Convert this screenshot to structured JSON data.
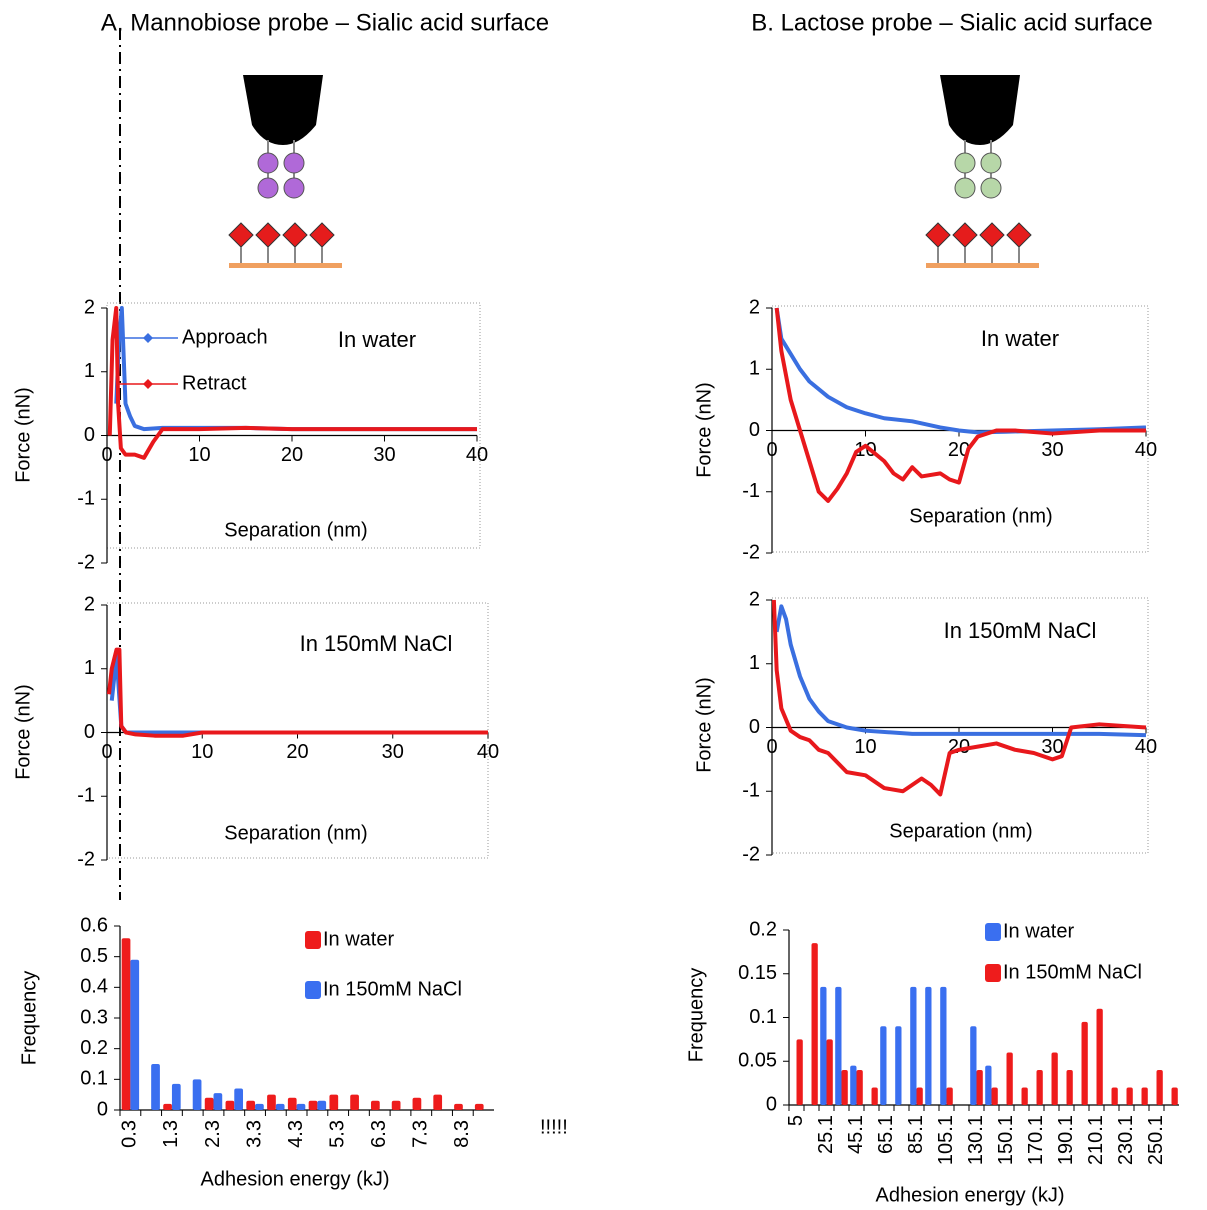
{
  "panel_titles": [
    "A. Mannobiose probe – Sialic acid surface",
    "B. Lactose probe – Sialic acid surface"
  ],
  "annotation": "!!!!!",
  "chart_data": [
    {
      "type": "line",
      "title": "In water",
      "x_label": "Separation (nm)",
      "y_label": "Force (nN)",
      "xlim": [
        0,
        40
      ],
      "ylim": [
        -2,
        2
      ],
      "xticks": [
        0,
        10,
        20,
        30,
        40
      ],
      "yticks": [
        -2,
        -1,
        0,
        1,
        2
      ],
      "series": [
        {
          "name": "Approach",
          "color": "#3a6fe0",
          "x": [
            1.0,
            1.3,
            1.6,
            2.0,
            2.5,
            3,
            4,
            6,
            10,
            15,
            20,
            25,
            30,
            35,
            40
          ],
          "values": [
            0.5,
            1.5,
            2.0,
            0.5,
            0.3,
            0.15,
            0.1,
            0.12,
            0.12,
            0.12,
            0.1,
            0.1,
            0.1,
            0.1,
            0.1
          ]
        },
        {
          "name": "Retract",
          "color": "#e8181c",
          "x": [
            0.3,
            0.6,
            1.0,
            1.2,
            1.5,
            2,
            3,
            4,
            5,
            6,
            10,
            15,
            20,
            25,
            30,
            35,
            40
          ],
          "values": [
            0,
            1.5,
            2.0,
            0.5,
            -0.2,
            -0.3,
            -0.3,
            -0.35,
            -0.1,
            0.1,
            0.1,
            0.12,
            0.1,
            0.1,
            0.1,
            0.1,
            0.1
          ]
        }
      ]
    },
    {
      "type": "line",
      "title": "In 150mM NaCl",
      "x_label": "Separation (nm)",
      "y_label": "Force (nN)",
      "xlim": [
        0,
        40
      ],
      "ylim": [
        -2,
        2
      ],
      "xticks": [
        0,
        10,
        20,
        30,
        40
      ],
      "yticks": [
        -2,
        -1,
        0,
        1,
        2
      ],
      "series": [
        {
          "color": "#3a6fe0",
          "x": [
            0.5,
            1,
            1.5,
            2,
            5,
            10,
            20,
            30,
            40
          ],
          "values": [
            0.5,
            1.2,
            0.1,
            0,
            0,
            0,
            0,
            0,
            0
          ]
        },
        {
          "color": "#e8181c",
          "x": [
            0.2,
            0.5,
            1,
            1.3,
            1.5,
            2,
            3,
            5,
            8,
            10,
            15,
            20,
            25,
            30,
            35,
            40
          ],
          "values": [
            0.6,
            1,
            1.3,
            1.3,
            0.1,
            0,
            -0.03,
            -0.05,
            -0.05,
            0,
            0,
            0,
            0,
            0,
            0,
            0
          ]
        }
      ]
    },
    {
      "type": "bar",
      "x_label": "Adhesion energy  (kJ)",
      "y_label": "Frequency",
      "ylim": [
        0,
        0.6
      ],
      "yticks": [
        0,
        0.1,
        0.2,
        0.3,
        0.4,
        0.5,
        0.6
      ],
      "categories": [
        "0.3",
        null,
        "1.3",
        null,
        "2.3",
        null,
        "3.3",
        null,
        "4.3",
        null,
        "5.3",
        null,
        "6.3",
        null,
        "7.3",
        null,
        "8.3",
        null
      ],
      "series": [
        {
          "name": "In water",
          "color": "#ee1c1c",
          "values": [
            0.56,
            0,
            0.02,
            0,
            0.04,
            0.03,
            0.03,
            0.05,
            0.04,
            0.03,
            0.05,
            0.05,
            0.03,
            0.03,
            0.04,
            0.05,
            0.02,
            0.02
          ]
        },
        {
          "name": "In 150mM NaCl",
          "color": "#3a6ff0",
          "values": [
            0.49,
            0.15,
            0.085,
            0.1,
            0.055,
            0.07,
            0.02,
            0.02,
            0.02,
            0.03,
            0,
            0,
            0,
            0,
            0,
            0,
            0,
            0
          ]
        }
      ]
    },
    {
      "type": "line",
      "title": "In water",
      "x_label": "Separation (nm)",
      "y_label": "Force (nN)",
      "xlim": [
        0,
        40
      ],
      "ylim": [
        -2,
        2
      ],
      "xticks": [
        0,
        10,
        20,
        30,
        40
      ],
      "yticks": [
        -2,
        -1,
        0,
        1,
        2
      ],
      "series": [
        {
          "color": "#3a6fe0",
          "x": [
            0.5,
            1,
            2,
            3,
            4,
            6,
            8,
            10,
            12,
            15,
            18,
            20,
            22,
            25,
            30,
            35,
            40
          ],
          "values": [
            2,
            1.5,
            1.25,
            1.0,
            0.8,
            0.55,
            0.38,
            0.28,
            0.2,
            0.15,
            0.05,
            0,
            -0.03,
            -0.02,
            0,
            0.02,
            0.05
          ]
        },
        {
          "color": "#e8181c",
          "x": [
            0.5,
            1,
            2,
            3,
            4,
            5,
            6,
            7,
            8,
            9,
            10,
            12,
            13,
            14,
            15,
            16,
            18,
            19,
            20,
            21,
            22,
            24,
            26,
            30,
            35,
            40
          ],
          "values": [
            2,
            1.3,
            0.5,
            0,
            -0.5,
            -1.0,
            -1.15,
            -0.95,
            -0.7,
            -0.35,
            -0.25,
            -0.5,
            -0.7,
            -0.8,
            -0.6,
            -0.75,
            -0.7,
            -0.8,
            -0.85,
            -0.3,
            -0.1,
            0,
            0,
            -0.05,
            0,
            0
          ]
        }
      ]
    },
    {
      "type": "line",
      "title": "In 150mM NaCl",
      "x_label": "Separation (nm)",
      "y_label": "Force (nN)",
      "xlim": [
        0,
        40
      ],
      "ylim": [
        -2,
        2
      ],
      "xticks": [
        0,
        10,
        20,
        30,
        40
      ],
      "yticks": [
        -2,
        -1,
        0,
        1,
        2
      ],
      "series": [
        {
          "color": "#3a6fe0",
          "x": [
            0.5,
            1,
            1.5,
            2,
            3,
            4,
            5,
            6,
            8,
            10,
            15,
            20,
            25,
            30,
            35,
            40
          ],
          "values": [
            1.5,
            1.9,
            1.7,
            1.3,
            0.8,
            0.45,
            0.25,
            0.1,
            0,
            -0.05,
            -0.1,
            -0.1,
            -0.1,
            -0.1,
            -0.1,
            -0.12
          ]
        },
        {
          "color": "#e8181c",
          "x": [
            0.2,
            0.5,
            1,
            2,
            3,
            4,
            5,
            6,
            8,
            10,
            12,
            14,
            16,
            17,
            18,
            19,
            20,
            22,
            24,
            26,
            28,
            30,
            31,
            32,
            35,
            40
          ],
          "values": [
            2,
            0.9,
            0.3,
            -0.05,
            -0.15,
            -0.2,
            -0.35,
            -0.4,
            -0.7,
            -0.75,
            -0.95,
            -1.0,
            -0.8,
            -0.9,
            -1.05,
            -0.4,
            -0.35,
            -0.3,
            -0.25,
            -0.35,
            -0.4,
            -0.5,
            -0.45,
            0,
            0.05,
            0
          ]
        }
      ]
    },
    {
      "type": "bar",
      "x_label": "Adhesion energy  (kJ)",
      "y_label": "Frequency",
      "ylim": [
        0,
        0.2
      ],
      "yticks": [
        0,
        0.05,
        0.1,
        0.15,
        0.2
      ],
      "categories": [
        "5",
        null,
        "25.1",
        null,
        "45.1",
        null,
        "65.1",
        null,
        "85.1",
        null,
        "105.1",
        null,
        "130.1",
        null,
        "150.1",
        null,
        "170.1",
        null,
        "190.1",
        null,
        "210.1",
        null,
        "230.1",
        null,
        "250.1",
        null
      ],
      "series": [
        {
          "name": "In water",
          "color": "#3a6ff0",
          "values": [
            0,
            0,
            0.135,
            0.135,
            0.045,
            0,
            0.09,
            0.09,
            0.135,
            0.135,
            0.135,
            0,
            0.09,
            0.045,
            0,
            0,
            0,
            0,
            0,
            0,
            0,
            0,
            0,
            0,
            0,
            0
          ]
        },
        {
          "name": "In 150mM NaCl",
          "color": "#ee1c1c",
          "values": [
            0.075,
            0.185,
            0.075,
            0.04,
            0.04,
            0.02,
            0,
            0,
            0.02,
            0,
            0.02,
            0,
            0.04,
            0.02,
            0.06,
            0.02,
            0.04,
            0.06,
            0.04,
            0.095,
            0.11,
            0.02,
            0.02,
            0.02,
            0.04,
            0.02
          ]
        }
      ]
    }
  ]
}
